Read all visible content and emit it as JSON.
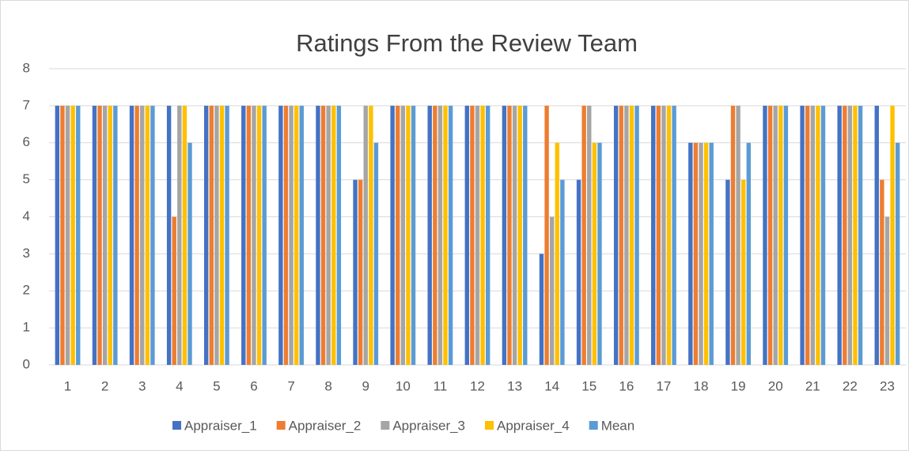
{
  "chart_data": {
    "type": "bar",
    "title": "Ratings From the Review Team",
    "categories": [
      "1",
      "2",
      "3",
      "4",
      "5",
      "6",
      "7",
      "8",
      "9",
      "10",
      "11",
      "12",
      "13",
      "14",
      "15",
      "16",
      "17",
      "18",
      "19",
      "20",
      "21",
      "22",
      "23"
    ],
    "series": [
      {
        "name": "Appraiser_1",
        "color": "#4472c4",
        "values": [
          7,
          7,
          7,
          7,
          7,
          7,
          7,
          7,
          5,
          7,
          7,
          7,
          7,
          3,
          5,
          7,
          7,
          6,
          5,
          7,
          7,
          7,
          7
        ]
      },
      {
        "name": "Appraiser_2",
        "color": "#ed7d31",
        "values": [
          7,
          7,
          7,
          4,
          7,
          7,
          7,
          7,
          5,
          7,
          7,
          7,
          7,
          7,
          7,
          7,
          7,
          6,
          7,
          7,
          7,
          7,
          5
        ]
      },
      {
        "name": "Appraiser_3",
        "color": "#a5a5a5",
        "values": [
          7,
          7,
          7,
          7,
          7,
          7,
          7,
          7,
          7,
          7,
          7,
          7,
          7,
          4,
          7,
          7,
          7,
          6,
          7,
          7,
          7,
          7,
          4
        ]
      },
      {
        "name": "Appraiser_4",
        "color": "#ffc000",
        "values": [
          7,
          7,
          7,
          7,
          7,
          7,
          7,
          7,
          7,
          7,
          7,
          7,
          7,
          6,
          6,
          7,
          7,
          6,
          5,
          7,
          7,
          7,
          7
        ]
      },
      {
        "name": "Mean",
        "color": "#5b9bd5",
        "values": [
          7,
          7,
          7,
          6,
          7,
          7,
          7,
          7,
          6,
          7,
          7,
          7,
          7,
          5,
          6,
          7,
          7,
          6,
          6,
          7,
          7,
          7,
          6
        ]
      }
    ],
    "ylim": [
      0,
      8
    ],
    "yticks": [
      0,
      1,
      2,
      3,
      4,
      5,
      6,
      7,
      8
    ],
    "grid": true,
    "legend": "bottom"
  }
}
